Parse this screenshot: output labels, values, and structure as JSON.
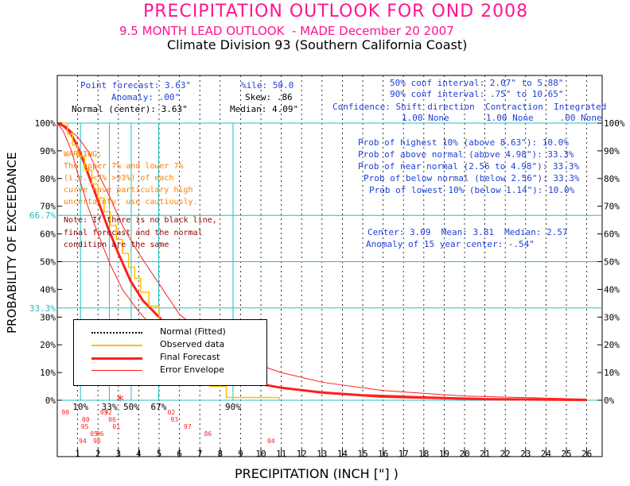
{
  "header": {
    "title": "PRECIPITATION OUTLOOK FOR OND 2008",
    "subtitle": "9.5 MONTH LEAD OUTLOOK  - MADE December 20 2007",
    "division": "Climate Division 93 (Southern California Coast)"
  },
  "stats": {
    "point_forecast": "Point forecast: 3.63\"",
    "anomaly": "Anomaly: .00\"",
    "normal_center": "Normal (center): 3.63\"",
    "zile": "%ile: 50.0",
    "skew": "Skew: .86",
    "median": "Median: 4.09\"",
    "conf50": "50% conf interval: 2.07\" to 5.88\"",
    "conf90": "90% conf interval: .75\" to 10.65\"",
    "confidence_header": "Confidence: Shift direction  Contraction  Integrated",
    "confidence_values": "1.00 None       1.00 None     .00 None"
  },
  "probabilities": [
    "Prob of highest 10% (above 8.63\"): 10.0%",
    "Prob of above normal (above 4.98\"): 33.3%",
    "Prob of near normal (2.56 to 4.98\"): 33.3%",
    "Prob of below normal (below 2.56\"): 33.3%",
    "Prob of lowest 10% (below 1.14\"): 10.0%"
  ],
  "center_stats": {
    "line1": "Center: 3.09  Mean: 3.81  Median: 2.57",
    "line2": "Anomaly of 15 year center: -.54\""
  },
  "warning": [
    "WARNING:",
    "The upper 7% and lower 7%",
    "(i.e. <7% >93%) of each",
    "curve have particulary high",
    "uncertainty, use cautiously."
  ],
  "note": [
    "Note: If there is no black line,",
    "final forecast and the normal",
    "condition are the same"
  ],
  "legend": [
    {
      "label": "Normal (Fitted)",
      "style": "dotted",
      "color": "#000000"
    },
    {
      "label": "Observed data",
      "style": "solid",
      "color": "#ffc000"
    },
    {
      "label": "Final Forecast",
      "style": "solid",
      "color": "#ff2020"
    },
    {
      "label": "Error Envelope",
      "style": "thin",
      "color": "#ff2020"
    }
  ],
  "axis_labels": {
    "y": "PROBABILITY OF EXCEEDANCE",
    "x": "PRECIPITATION (INCH [\"] )"
  },
  "colors": {
    "title": "#ff1493",
    "stats_text": "#1f3fd8",
    "ref_lines": "#20c0c0",
    "observed": "#ffc000",
    "forecast": "#ff2020",
    "warning": "#ff7f00",
    "note": "#8b0000",
    "year_labels": "#ff2020"
  },
  "chart_data": {
    "type": "line",
    "title": "PRECIPITATION OUTLOOK FOR OND 2008",
    "xlabel": "PRECIPITATION (INCH [\"] )",
    "ylabel": "PROBABILITY OF EXCEEDANCE",
    "xlim": [
      0,
      27
    ],
    "ylim": [
      0,
      100
    ],
    "x_ticks": [
      1,
      2,
      3,
      4,
      5,
      6,
      7,
      8,
      9,
      10,
      11,
      12,
      13,
      14,
      15,
      16,
      17,
      18,
      19,
      20,
      21,
      22,
      23,
      24,
      25,
      26
    ],
    "y_ticks_left": [
      "0%",
      "10%",
      "20%",
      "30%",
      "40%",
      "50%",
      "60%",
      "70%",
      "80%",
      "90%",
      "100%"
    ],
    "y_ticks_right": [
      "0%",
      "10%",
      "20%",
      "30%",
      "40%",
      "50%",
      "60%",
      "70%",
      "80%",
      "90%",
      "100%"
    ],
    "ref_probabilities": [
      {
        "value": 66.7,
        "label": "66.7%"
      },
      {
        "value": 33.3,
        "label": "33.3%"
      }
    ],
    "percentile_markers": [
      {
        "x": 1.14,
        "label": "10%"
      },
      {
        "x": 2.56,
        "label": "33%"
      },
      {
        "x": 3.63,
        "label": "50%"
      },
      {
        "x": 4.98,
        "label": "67%"
      },
      {
        "x": 8.63,
        "label": "90%"
      }
    ],
    "center_marker": {
      "x": 3.09,
      "symbol": "*"
    },
    "series": [
      {
        "name": "Final Forecast",
        "x": [
          0.0,
          0.3,
          0.6,
          0.9,
          1.2,
          1.6,
          2.0,
          2.5,
          3.0,
          3.6,
          4.2,
          5.0,
          6.0,
          7.0,
          8.0,
          9.5,
          11.0,
          13.0,
          15.0,
          18.0,
          21.0,
          26.0
        ],
        "y": [
          100,
          99,
          97,
          93,
          88,
          80,
          72,
          62,
          53,
          43,
          36,
          30,
          20,
          14,
          9.5,
          6.5,
          4.5,
          2.8,
          1.8,
          1.0,
          0.4,
          0.1
        ]
      },
      {
        "name": "Error Envelope (upper)",
        "x": [
          0.0,
          0.4,
          1.0,
          1.5,
          2.0,
          2.6,
          3.2,
          4.0,
          5.0,
          6.0,
          7.5,
          9.0,
          11.0,
          13.0,
          16.0,
          20.0,
          26.0
        ],
        "y": [
          100,
          99,
          95,
          90,
          82,
          73,
          63,
          53,
          42,
          31,
          22,
          15,
          10,
          6.5,
          3.5,
          1.5,
          0.4
        ]
      },
      {
        "name": "Error Envelope (lower)",
        "x": [
          0.0,
          0.3,
          0.7,
          1.0,
          1.5,
          2.0,
          2.6,
          3.2,
          4.0,
          5.0,
          6.5,
          8.0,
          10.0,
          13.0,
          16.0,
          20.0,
          26.0
        ],
        "y": [
          100,
          97,
          90,
          82,
          70,
          60,
          49,
          40,
          32,
          24,
          16,
          10,
          5.5,
          2.5,
          1.0,
          0.3,
          0.0
        ]
      },
      {
        "name": "Observed data",
        "step_x": [
          0.0,
          0.5,
          0.5,
          0.75,
          0.75,
          1.0,
          1.0,
          1.35,
          1.35,
          1.7,
          1.7,
          2.0,
          2.0,
          2.3,
          2.3,
          2.6,
          2.6,
          2.9,
          2.9,
          3.2,
          3.2,
          3.5,
          3.5,
          3.8,
          3.8,
          4.1,
          4.1,
          4.5,
          4.5,
          5.0,
          5.0,
          5.5,
          5.5,
          6.1,
          6.1,
          7.5,
          7.5,
          8.3,
          8.3,
          10.9,
          10.9
        ],
        "step_y": [
          100,
          100,
          96,
          96,
          92,
          92,
          88,
          88,
          83,
          83,
          78,
          78,
          73,
          73,
          68,
          68,
          63,
          63,
          58,
          58,
          53,
          53,
          48,
          48,
          44,
          44,
          39,
          39,
          34,
          34,
          29,
          29,
          24,
          24,
          19,
          19,
          5,
          5,
          1,
          1,
          0
        ]
      }
    ],
    "year_points": [
      {
        "label": "99",
        "x": 0.4,
        "rank": 0
      },
      {
        "label": "00",
        "x": 1.4,
        "rank": 1
      },
      {
        "label": "95",
        "x": 1.35,
        "rank": 2
      },
      {
        "label": "05",
        "x": 1.8,
        "rank": 3
      },
      {
        "label": "98",
        "x": 1.95,
        "rank": 4
      },
      {
        "label": "03",
        "x": 2.3,
        "rank": 5
      },
      {
        "label": "06",
        "x": 2.7,
        "rank": 6
      },
      {
        "label": "01",
        "x": 2.9,
        "rank": 7
      },
      {
        "label": "96",
        "x": 2.1,
        "rank": 8
      },
      {
        "label": "94",
        "x": 1.25,
        "rank": 9
      },
      {
        "label": "02",
        "x": 5.6,
        "rank": 10
      },
      {
        "label": "93",
        "x": 5.75,
        "rank": 11
      },
      {
        "label": "97",
        "x": 6.4,
        "rank": 12
      },
      {
        "label": "86",
        "x": 7.4,
        "rank": 13
      },
      {
        "label": "04",
        "x": 10.5,
        "rank": 14
      },
      {
        "label": "92",
        "x": 2.5,
        "rank": 15
      }
    ]
  }
}
